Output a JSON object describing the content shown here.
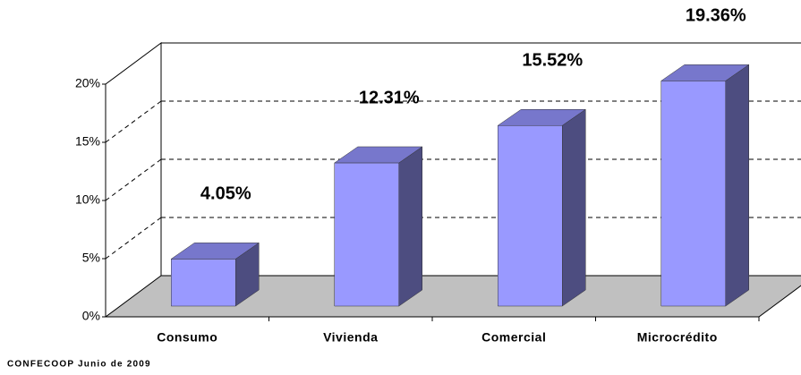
{
  "chart_data": {
    "type": "bar3d",
    "categories": [
      "Consumo",
      "Vivienda",
      "Comercial",
      "Microcrédito"
    ],
    "values": [
      4.05,
      12.31,
      15.52,
      19.36
    ],
    "value_labels": [
      "4.05%",
      "12.31%",
      "15.52%",
      "19.36%"
    ],
    "color": "#9999ff",
    "ylim": [
      0,
      20
    ],
    "yticks": [
      {
        "value": 0,
        "label": "0%"
      },
      {
        "value": 5,
        "label": "5%"
      },
      {
        "value": 10,
        "label": "10%"
      },
      {
        "value": 15,
        "label": "15%"
      },
      {
        "value": 20,
        "label": "20%"
      }
    ],
    "grid": true,
    "source": "CONFECOOP Junio de 2009"
  }
}
